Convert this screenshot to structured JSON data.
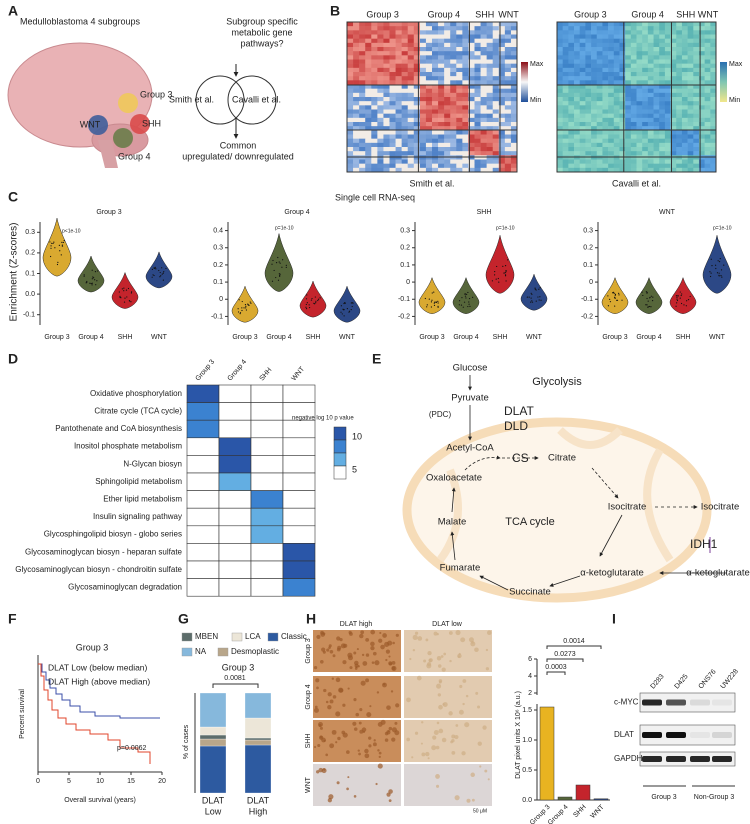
{
  "A": {
    "label": "A",
    "title": "Medulloblastoma 4 subgroups",
    "regions": [
      "Group 3",
      "WNT",
      "SHH",
      "Group 4"
    ],
    "question": [
      "Subgroup specific",
      "metabolic gene",
      "pathways?"
    ],
    "sets": [
      "Smith et al.",
      "Cavalli et al."
    ],
    "result": [
      "Common",
      "upregulated/ downregulated"
    ]
  },
  "B": {
    "label": "B",
    "heatmaps": [
      {
        "groups": [
          "Group 3",
          "Group 4",
          "SHH",
          "WNT"
        ],
        "legend": [
          "Max",
          "Min"
        ],
        "caption": "Smith et al."
      },
      {
        "groups": [
          "Group 3",
          "Group 4",
          "SHH",
          "WNT"
        ],
        "legend": [
          "Max",
          "Min"
        ],
        "caption": "Cavalli et al."
      }
    ]
  },
  "C": {
    "label": "C",
    "title": "Single cell RNA-seq",
    "ylabel": "Enrichment (Z-scores)",
    "colors": [
      "#d9a930",
      "#56663a",
      "#c4242c",
      "#2c4886"
    ],
    "panels": [
      {
        "title": "Group 3",
        "pvalue": "p<1e-10",
        "categories": [
          "Group 3",
          "Group 4",
          "SHH",
          "WNT"
        ],
        "medians": [
          0.2,
          0.08,
          0.0,
          0.1
        ],
        "ylim": [
          -0.15,
          0.35
        ],
        "yticks": [
          -0.1,
          {
            "value": 0,
            "label": "0.0"
          },
          0.1,
          0.2,
          0.3
        ]
      },
      {
        "title": "Group 4",
        "pvalue": "p=1e-10",
        "categories": [
          "Group 3",
          "Group 4",
          "SHH",
          "WNT"
        ],
        "medians": [
          -0.05,
          0.18,
          -0.02,
          -0.05
        ],
        "ylim": [
          -0.15,
          0.45
        ],
        "yticks": [
          -0.1,
          0,
          0.1,
          0.2,
          0.3,
          0.4
        ]
      },
      {
        "title": "SHH",
        "pvalue": "p=1e-10",
        "categories": [
          "Group 3",
          "Group 4",
          "SHH",
          "WNT"
        ],
        "medians": [
          -0.1,
          -0.1,
          0.07,
          -0.08
        ],
        "ylim": [
          -0.25,
          0.35
        ],
        "yticks": [
          -0.2,
          -0.1,
          0,
          0.1,
          0.2,
          0.3
        ]
      },
      {
        "title": "WNT",
        "pvalue": "p=1e-10",
        "categories": [
          "Group 3",
          "Group 4",
          "SHH",
          "WNT"
        ],
        "medians": [
          -0.1,
          -0.1,
          -0.1,
          0.07
        ],
        "ylim": [
          -0.25,
          0.35
        ],
        "yticks": [
          -0.2,
          -0.1,
          0,
          0.1,
          0.2,
          0.3
        ]
      }
    ]
  },
  "D": {
    "label": "D",
    "columns": [
      "Group 3",
      "Group 4",
      "SHH",
      "WNT"
    ],
    "rows": [
      "Oxidative phosphorylation",
      "Citrate cycle (TCA cycle)",
      "Pantothenate and CoA biosynthesis",
      "Inositol phosphate metabolism",
      "N-Glycan biosyn",
      "Sphingolipid metabolism",
      "Ether lipid metabolism",
      "Insulin signaling pathway",
      "Glycosphingolipid biosyn - globo series",
      "Glycosaminoglycan biosyn - heparan sulfate",
      "Glycosaminoglycan biosyn - chondroitin sulfate",
      "Glycosaminoglycan degradation"
    ],
    "values": [
      [
        9,
        null,
        null,
        null
      ],
      [
        7,
        null,
        null,
        null
      ],
      [
        7,
        null,
        null,
        null
      ],
      [
        null,
        9,
        null,
        null
      ],
      [
        null,
        9,
        null,
        null
      ],
      [
        null,
        6,
        null,
        null
      ],
      [
        null,
        null,
        7,
        null
      ],
      [
        null,
        null,
        6,
        null
      ],
      [
        null,
        null,
        6,
        null
      ],
      [
        null,
        null,
        null,
        9
      ],
      [
        null,
        null,
        null,
        9
      ],
      [
        null,
        null,
        null,
        7
      ]
    ],
    "highlight_color": "#6b3fa0",
    "highlighted_rows": [
      0,
      1,
      2
    ],
    "highlighted_columns": [
      0
    ],
    "legend_title": "negative log 10 p value",
    "legend_ticks": [
      10,
      5
    ],
    "scale_colors": [
      "#2a56a8",
      "#3b82d0",
      "#63aee2",
      "#ffffff"
    ]
  },
  "E": {
    "label": "E",
    "title": "Glycolysis",
    "cycle": "TCA cycle",
    "enzyme_color": "#7b3f98",
    "metabolites": [
      "Glucose",
      "Pyruvate",
      "(PDC)",
      "Acetyl-CoA",
      "Citrate",
      "Oxaloacetate",
      "Isocitrate",
      "Malate",
      "Fumarate",
      "Succinate",
      "α-ketoglutarate",
      "Isocitrate",
      "α-ketoglutarate"
    ],
    "enzymes": [
      "DLAT",
      "DLD",
      "CS",
      "IDH1"
    ]
  },
  "F": {
    "label": "F",
    "title": "Group 3",
    "series": [
      {
        "name": "DLAT Low (below median)",
        "color": "#3b4fa8"
      },
      {
        "name": "DLAT High (above median)",
        "color": "#e0452b"
      }
    ],
    "pvalue": "p=0.0062",
    "xlabel": "Overall survival (years)",
    "ylabel": "Percent survival",
    "xlim": [
      0,
      20
    ],
    "xticks": [
      0,
      5,
      10,
      15,
      20
    ]
  },
  "G": {
    "label": "G",
    "title": "Group 3",
    "ylabel": "% of cases",
    "pvalue": "0.0081",
    "ylim": [
      0,
      100
    ],
    "categories": [
      [
        "DLAT",
        "Low"
      ],
      [
        "DLAT",
        "High"
      ]
    ],
    "category_colors": [
      "#3b4fa8",
      "#e0452b"
    ],
    "series": [
      {
        "name": "Classic",
        "color": "#2d5aa0",
        "values": [
          47,
          48
        ]
      },
      {
        "name": "Desmoplastic",
        "color": "#b8a68a",
        "values": [
          7,
          5
        ]
      },
      {
        "name": "MBEN",
        "color": "#5d6d6b",
        "values": [
          4,
          2
        ]
      },
      {
        "name": "LCA",
        "color": "#ece6d8",
        "values": [
          8,
          20
        ]
      },
      {
        "name": "NA",
        "color": "#86b8dc",
        "values": [
          34,
          25
        ]
      }
    ]
  },
  "H": {
    "label": "H",
    "columns": [
      "DLAT high",
      "DLAT low"
    ],
    "rows": [
      "Group 3",
      "Group 4",
      "SHH",
      "WNT"
    ],
    "scale_bar": "50 μM",
    "chart": {
      "type": "bar",
      "ylabel": "DLAT pixel units X 10⁶ (a.u.)",
      "categories": [
        "Group 3",
        "Group 4",
        "SHH",
        "WNT"
      ],
      "values": [
        1.55,
        0.05,
        0.25,
        0.02
      ],
      "colors": [
        "#e8b321",
        "#56663a",
        "#c4242c",
        "#2c4886"
      ],
      "lower": {
        "ylim": [
          0,
          1.6
        ],
        "yticks": [
          {
            "value": 0,
            "label": "0.0"
          },
          0.5,
          {
            "value": 1,
            "label": "1.0"
          },
          1.5
        ]
      },
      "upper": {
        "ylim": [
          2,
          6
        ],
        "yticks": [
          2,
          4,
          6
        ]
      },
      "comparisons": [
        {
          "label": "0.0014",
          "pair": [
            0,
            3
          ]
        },
        {
          "label": "0.0273",
          "pair": [
            0,
            2
          ]
        },
        {
          "label": "0.0003",
          "pair": [
            0,
            1
          ]
        }
      ]
    }
  },
  "I": {
    "label": "I",
    "lanes": [
      "D283",
      "D425",
      "ONS76",
      "UW228"
    ],
    "proteins": [
      "c-MYC",
      "DLAT",
      "GAPDH"
    ],
    "groups": [
      "Group 3",
      "Non-Group 3"
    ]
  }
}
